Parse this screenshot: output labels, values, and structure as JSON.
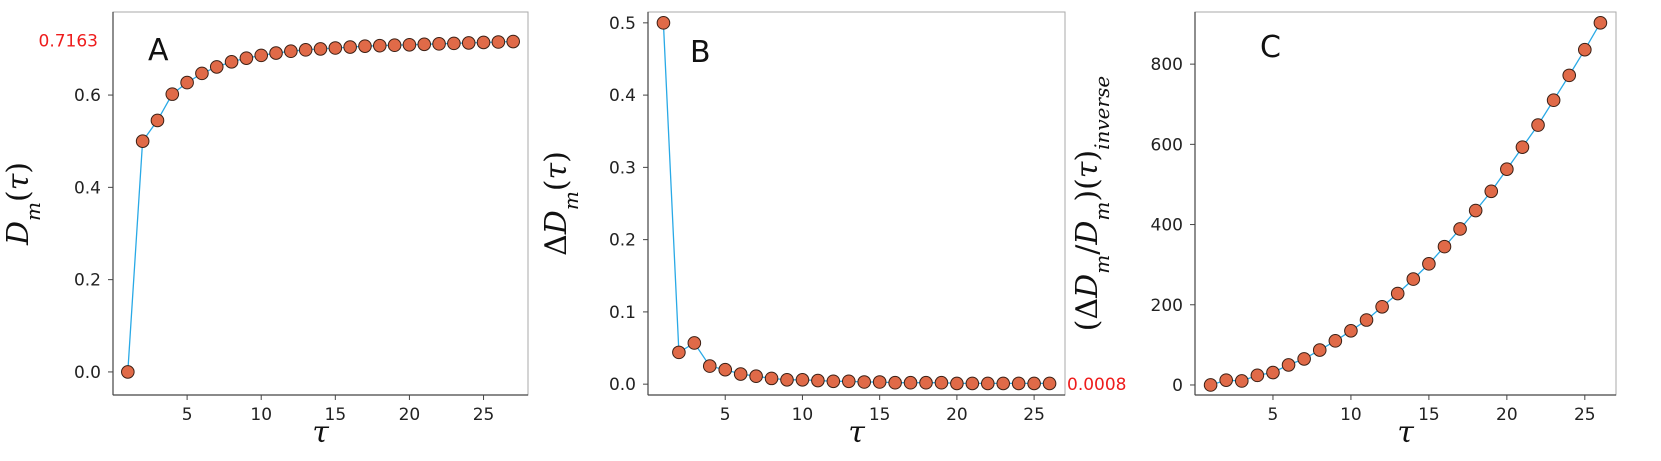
{
  "colors": {
    "line": "#29a9e6",
    "marker_fill": "#e06a48",
    "marker_edge": "#3a1f14",
    "annotation": "#ee1c1c",
    "frame": "#aaaaaa"
  },
  "chart_data": [
    {
      "type": "line",
      "panel_label": "A",
      "xlabel": "τ",
      "ylabel": "D_m(τ)",
      "xlim": [
        0,
        28
      ],
      "ylim": [
        -0.05,
        0.78
      ],
      "xticks": [
        5,
        10,
        15,
        20,
        25
      ],
      "yticks": [
        0.0,
        0.2,
        0.4,
        0.6
      ],
      "ytick_labels": [
        "0.0",
        "0.2",
        "0.4",
        "0.6"
      ],
      "annotation": {
        "text": "0.7163",
        "y": 0.718
      },
      "grid": false,
      "x": [
        1,
        2,
        3,
        4,
        5,
        6,
        7,
        8,
        9,
        10,
        11,
        12,
        13,
        14,
        15,
        16,
        17,
        18,
        19,
        20,
        21,
        22,
        23,
        24,
        25,
        26,
        27
      ],
      "y": [
        0.0,
        0.5,
        0.545,
        0.602,
        0.627,
        0.647,
        0.661,
        0.672,
        0.68,
        0.686,
        0.691,
        0.695,
        0.698,
        0.7,
        0.702,
        0.704,
        0.706,
        0.707,
        0.708,
        0.709,
        0.71,
        0.711,
        0.712,
        0.713,
        0.714,
        0.715,
        0.716
      ]
    },
    {
      "type": "line",
      "panel_label": "B",
      "xlabel": "τ",
      "ylabel": "ΔD_m(τ)",
      "xlim": [
        0,
        27
      ],
      "ylim": [
        -0.015,
        0.515
      ],
      "xticks": [
        5,
        10,
        15,
        20,
        25
      ],
      "yticks": [
        0.0,
        0.1,
        0.2,
        0.3,
        0.4,
        0.5
      ],
      "ytick_labels": [
        "0.0",
        "0.1",
        "0.2",
        "0.3",
        "0.4",
        "0.5"
      ],
      "annotation": {
        "text": "0.0008",
        "y": 0.0
      },
      "grid": false,
      "x": [
        1,
        2,
        3,
        4,
        5,
        6,
        7,
        8,
        9,
        10,
        11,
        12,
        13,
        14,
        15,
        16,
        17,
        18,
        19,
        20,
        21,
        22,
        23,
        24,
        25,
        26
      ],
      "y": [
        0.5,
        0.044,
        0.057,
        0.025,
        0.02,
        0.014,
        0.011,
        0.008,
        0.006,
        0.006,
        0.005,
        0.004,
        0.004,
        0.003,
        0.003,
        0.002,
        0.002,
        0.002,
        0.002,
        0.001,
        0.001,
        0.001,
        0.001,
        0.001,
        0.001,
        0.001
      ]
    },
    {
      "type": "line",
      "panel_label": "C",
      "xlabel": "τ",
      "ylabel": "(ΔD_m/D_m)(τ)_inverse",
      "xlim": [
        0,
        27
      ],
      "ylim": [
        -25,
        930
      ],
      "xticks": [
        5,
        10,
        15,
        20,
        25
      ],
      "yticks": [
        0,
        200,
        400,
        600,
        800
      ],
      "ytick_labels": [
        "0",
        "200",
        "400",
        "600",
        "800"
      ],
      "grid": false,
      "x": [
        1,
        2,
        3,
        4,
        5,
        6,
        7,
        8,
        9,
        10,
        11,
        12,
        13,
        14,
        15,
        16,
        17,
        18,
        19,
        20,
        21,
        22,
        23,
        24,
        25,
        26
      ],
      "y": [
        0,
        12,
        10,
        24,
        31,
        50,
        65,
        87,
        110,
        135,
        162,
        195,
        228,
        264,
        302,
        345,
        389,
        435,
        483,
        538,
        593,
        648,
        710,
        772,
        836,
        903
      ]
    }
  ]
}
